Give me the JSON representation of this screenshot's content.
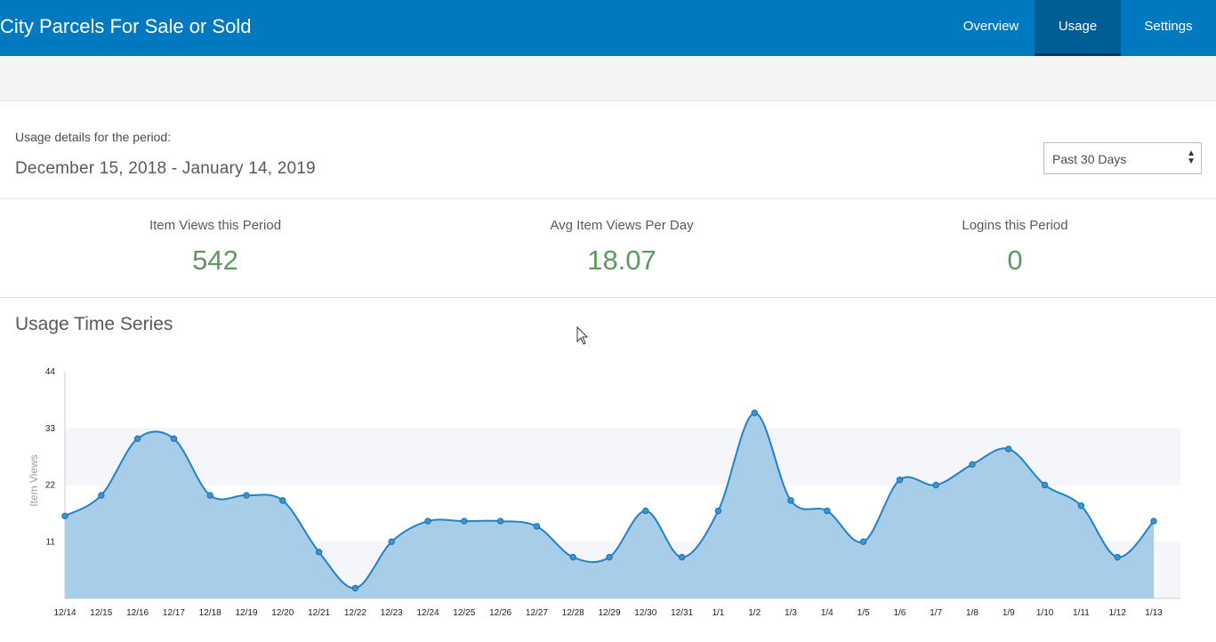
{
  "header": {
    "title": "City Parcels For Sale or Sold",
    "tabs": [
      {
        "label": "Overview",
        "active": false
      },
      {
        "label": "Usage",
        "active": true
      },
      {
        "label": "Settings",
        "active": false
      }
    ]
  },
  "period": {
    "label": "Usage details for the period:",
    "range": "December 15, 2018 - January 14, 2019",
    "select_value": "Past 30 Days"
  },
  "stats": [
    {
      "label": "Item Views this Period",
      "value": "542"
    },
    {
      "label": "Avg Item Views Per Day",
      "value": "18.07"
    },
    {
      "label": "Logins this Period",
      "value": "0"
    }
  ],
  "section_title": "Usage Time Series",
  "colors": {
    "header": "#0079c1",
    "active_tab": "#005e95",
    "stat_value": "#5c9a5e",
    "series_line": "#2182c8",
    "series_fill": "#a8cde9"
  },
  "chart_data": {
    "type": "area",
    "ylabel": "Item Views",
    "yticks": [
      11,
      22,
      33,
      44
    ],
    "ylim": [
      0,
      44
    ],
    "x": [
      "12/14",
      "12/15",
      "12/16",
      "12/17",
      "12/18",
      "12/19",
      "12/20",
      "12/21",
      "12/22",
      "12/23",
      "12/24",
      "12/25",
      "12/26",
      "12/27",
      "12/28",
      "12/29",
      "12/30",
      "12/31",
      "1/1",
      "1/2",
      "1/3",
      "1/4",
      "1/5",
      "1/6",
      "1/7",
      "1/8",
      "1/9",
      "1/10",
      "1/11",
      "1/12",
      "1/13"
    ],
    "series": [
      {
        "values": [
          16,
          20,
          31,
          31,
          20,
          20,
          19,
          9,
          2,
          11,
          15,
          15,
          15,
          14,
          8,
          8,
          17,
          8,
          17,
          36,
          19,
          17,
          11,
          23,
          22,
          26,
          29,
          22,
          18,
          8,
          15
        ]
      }
    ]
  }
}
